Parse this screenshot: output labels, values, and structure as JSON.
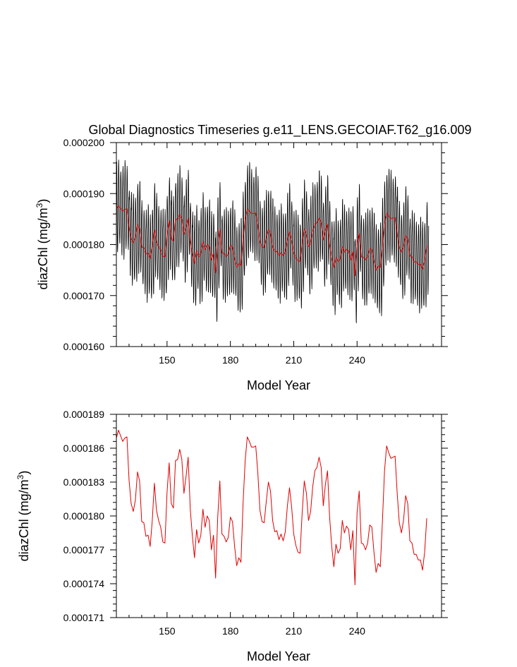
{
  "page_title": "Global Diagnostics Timeseries g.e11_LENS.GECOIAF.T62_g16.009",
  "colors": {
    "monthly": "#000000",
    "annual": "#e00000"
  },
  "chart_data": [
    {
      "id": "top",
      "type": "line",
      "title": "Global Diagnostics Timeseries g.e11_LENS.GECOIAF.T62_g16.009",
      "xlabel": "Model Year",
      "ylabel": "diazChl (mg/m",
      "ylabel_sup": "3",
      "ylabel_close": ")",
      "xlim": [
        126,
        280
      ],
      "ylim": [
        0.00016,
        0.0002
      ],
      "xticks": [
        150,
        180,
        210,
        240
      ],
      "xtick_labels": [
        "150",
        "180",
        "210",
        "240"
      ],
      "yticks": [
        0.00016,
        0.00017,
        0.00018,
        0.00019,
        0.0002
      ],
      "ytick_labels": [
        "0.000160",
        "0.000170",
        "0.000180",
        "0.000190",
        "0.000200"
      ],
      "series": [
        {
          "name": "monthly",
          "color": "#000000",
          "source": "monthly_from_annual",
          "seasonal_amplitude": 8.5e-06
        },
        {
          "name": "annual",
          "color": "#e00000",
          "source": "annual"
        }
      ]
    },
    {
      "id": "bottom",
      "type": "line",
      "title": "",
      "xlabel": "Model Year",
      "ylabel": "diazChl (mg/m",
      "ylabel_sup": "3",
      "ylabel_close": ")",
      "xlim": [
        126,
        280
      ],
      "ylim": [
        0.000171,
        0.000189
      ],
      "xticks": [
        150,
        180,
        210,
        240
      ],
      "xtick_labels": [
        "150",
        "180",
        "210",
        "240"
      ],
      "yticks": [
        0.000171,
        0.000174,
        0.000177,
        0.00018,
        0.000183,
        0.000186,
        0.000189
      ],
      "ytick_labels": [
        "0.000171",
        "0.000174",
        "0.000177",
        "0.000180",
        "0.000183",
        "0.000186",
        "0.000189"
      ],
      "series": [
        {
          "name": "annual",
          "color": "#e00000",
          "source": "annual"
        }
      ]
    }
  ],
  "annual": {
    "start_year": 126,
    "values": [
      0.0001869,
      0.0001876,
      0.0001871,
      0.0001866,
      0.0001869,
      0.000187,
      0.0001832,
      0.0001811,
      0.0001804,
      0.0001814,
      0.0001839,
      0.0001831,
      0.0001795,
      0.0001794,
      0.0001782,
      0.0001783,
      0.0001773,
      0.0001796,
      0.0001829,
      0.0001805,
      0.0001796,
      0.000179,
      0.0001777,
      0.0001776,
      0.0001821,
      0.0001847,
      0.0001811,
      0.0001807,
      0.0001849,
      0.000185,
      0.0001859,
      0.000185,
      0.000182,
      0.0001835,
      0.0001852,
      0.0001806,
      0.0001782,
      0.0001763,
      0.0001788,
      0.0001776,
      0.0001783,
      0.0001806,
      0.000179,
      0.00018,
      0.0001796,
      0.000177,
      0.0001783,
      0.0001745,
      0.0001799,
      0.0001831,
      0.0001784,
      0.0001782,
      0.0001777,
      0.0001781,
      0.0001799,
      0.0001795,
      0.0001773,
      0.0001756,
      0.0001763,
      0.0001759,
      0.0001811,
      0.0001849,
      0.000187,
      0.0001866,
      0.0001861,
      0.0001861,
      0.0001862,
      0.0001838,
      0.0001805,
      0.0001795,
      0.0001794,
      0.0001813,
      0.000183,
      0.0001822,
      0.0001796,
      0.0001786,
      0.0001787,
      0.0001779,
      0.0001784,
      0.0001778,
      0.0001786,
      0.0001809,
      0.0001825,
      0.0001808,
      0.0001784,
      0.0001774,
      0.0001768,
      0.0001767,
      0.0001803,
      0.0001831,
      0.000182,
      0.0001796,
      0.0001804,
      0.0001826,
      0.000184,
      0.0001843,
      0.0001852,
      0.0001843,
      0.0001809,
      0.0001828,
      0.000184,
      0.0001799,
      0.0001773,
      0.0001755,
      0.0001775,
      0.0001767,
      0.0001771,
      0.0001796,
      0.0001785,
      0.0001791,
      0.0001788,
      0.000177,
      0.0001787,
      0.0001739,
      0.0001803,
      0.0001822,
      0.0001776,
      0.0001775,
      0.000177,
      0.0001776,
      0.0001792,
      0.000179,
      0.0001768,
      0.000175,
      0.0001758,
      0.0001755,
      0.0001795,
      0.000184,
      0.0001862,
      0.0001856,
      0.0001851,
      0.0001852,
      0.0001853,
      0.000182,
      0.0001794,
      0.0001785,
      0.0001796,
      0.0001818,
      0.0001811,
      0.0001778,
      0.0001776,
      0.0001766,
      0.0001766,
      0.0001761,
      0.0001761,
      0.0001752,
      0.0001768,
      0.0001798
    ]
  }
}
